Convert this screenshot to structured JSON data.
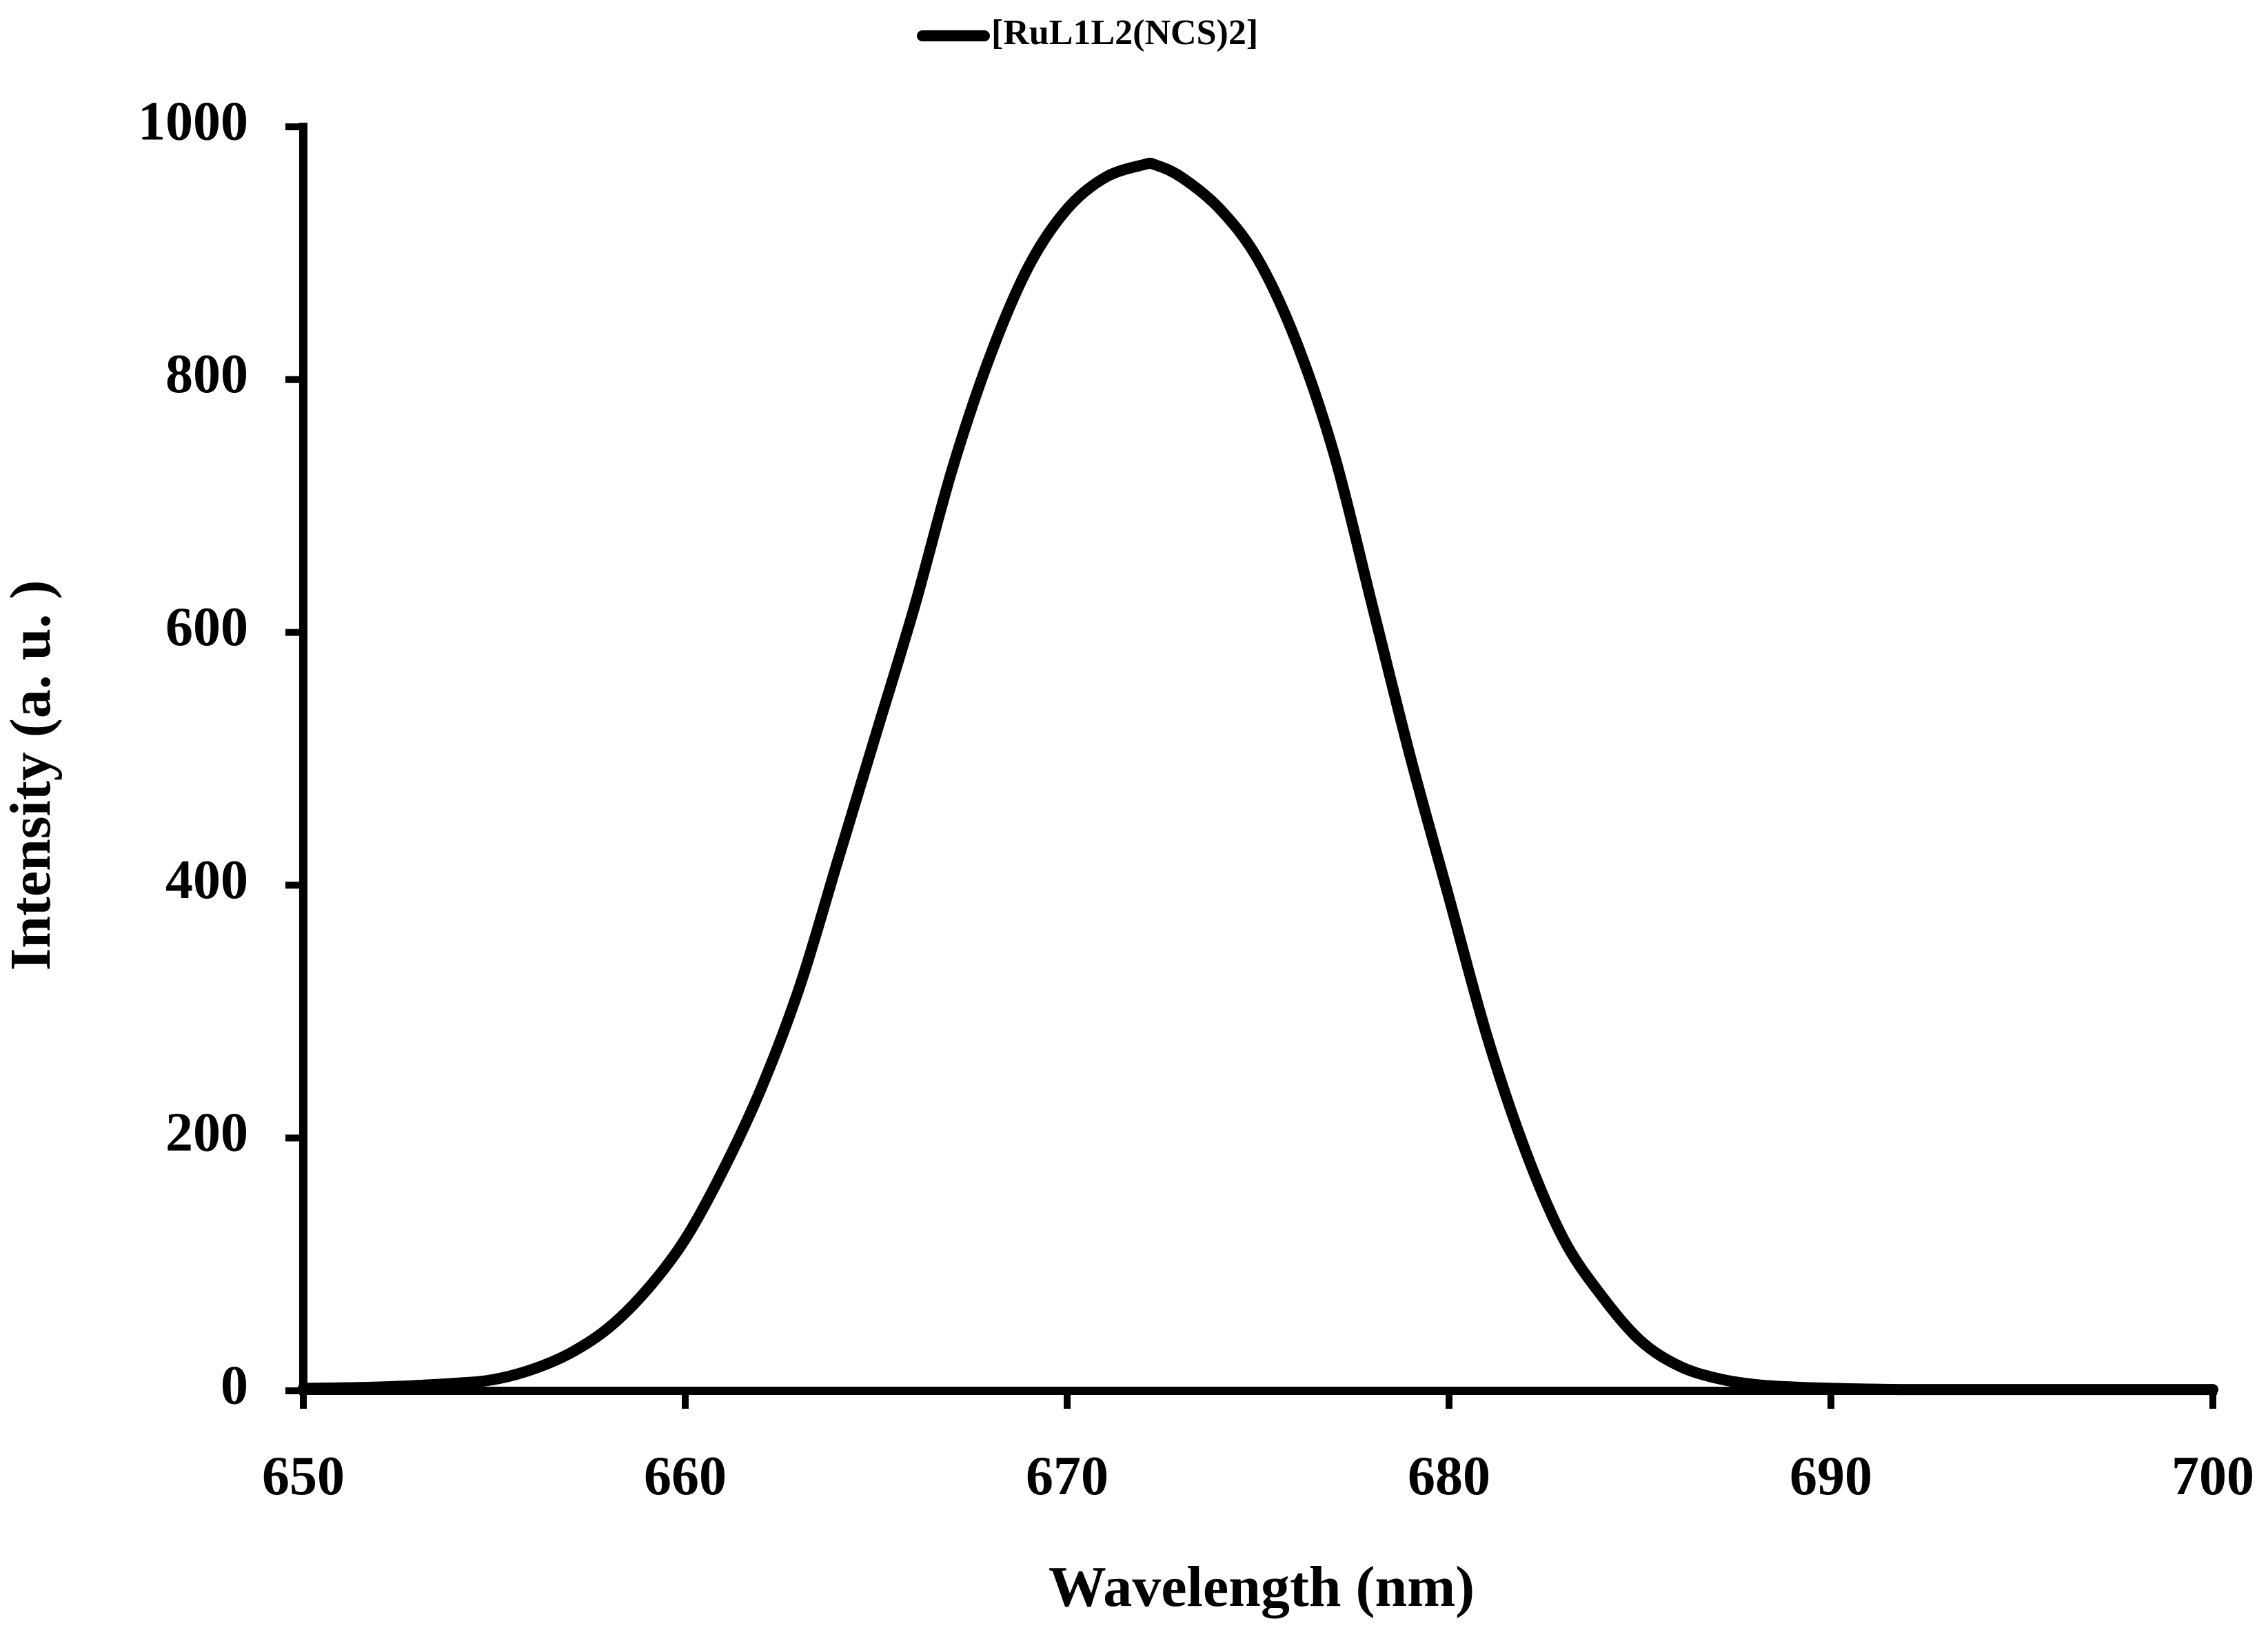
{
  "chart_data": {
    "type": "line",
    "title": "",
    "xlabel": "Wavelength (nm)",
    "ylabel": "Intensity (a. u. )",
    "xlim": [
      650,
      700
    ],
    "ylim": [
      0,
      1000
    ],
    "x_ticks": [
      "650",
      "660",
      "670",
      "680",
      "690",
      "700"
    ],
    "y_ticks": [
      "0",
      "200",
      "400",
      "600",
      "800",
      "1000"
    ],
    "grid": false,
    "legend_position": "top-center",
    "series": [
      {
        "name": "[RuL1L2(NCS)2]",
        "color": "#000000",
        "x": [
          650,
          652,
          654,
          655,
          656,
          657,
          658,
          659,
          660,
          661,
          662,
          663,
          664,
          665,
          666,
          667,
          668,
          669,
          670,
          671,
          672,
          672.3,
          673,
          674,
          675,
          676,
          677,
          678,
          679,
          680,
          681,
          682,
          683,
          684,
          685,
          686,
          687,
          688,
          689,
          690,
          692,
          695,
          700
        ],
        "y": [
          2,
          3,
          6,
          9,
          17,
          30,
          50,
          80,
          120,
          175,
          240,
          320,
          420,
          520,
          620,
          730,
          820,
          890,
          935,
          960,
          970,
          970,
          960,
          935,
          895,
          830,
          740,
          620,
          500,
          390,
          280,
          190,
          120,
          75,
          40,
          20,
          10,
          5,
          3,
          2,
          1,
          1,
          1
        ]
      }
    ]
  }
}
